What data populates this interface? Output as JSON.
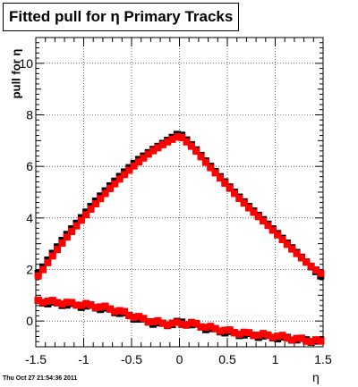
{
  "title": "Fitted pull for η  Primary Tracks",
  "timestamp": "Thu Oct 27 21:54:36 2011",
  "chart_data": {
    "type": "scatter",
    "title": "Fitted pull for η  Primary Tracks",
    "xlabel": "η",
    "ylabel": "pull for η",
    "xlim": [
      -1.5,
      1.5
    ],
    "ylim": [
      -1,
      11
    ],
    "xticks": [
      -1.5,
      -1,
      -0.5,
      0,
      0.5,
      1,
      1.5
    ],
    "yticks": [
      0,
      2,
      4,
      6,
      8,
      10
    ],
    "grid": true,
    "series": [
      {
        "color": "#000000",
        "marker": "square",
        "role": "width-black",
        "shape": "tent",
        "x": [
          -1.47,
          -1.35,
          -1.2,
          -1.05,
          -0.9,
          -0.75,
          -0.6,
          -0.45,
          -0.3,
          -0.15,
          0.0,
          0.15,
          0.3,
          0.45,
          0.6,
          0.75,
          0.9,
          1.05,
          1.2,
          1.35,
          1.47
        ],
        "y": [
          1.85,
          2.5,
          3.25,
          3.9,
          4.55,
          5.15,
          5.7,
          6.2,
          6.6,
          6.95,
          7.3,
          6.75,
          6.1,
          5.5,
          4.9,
          4.35,
          3.85,
          3.3,
          2.75,
          2.2,
          1.75
        ]
      },
      {
        "color": "#ff0000",
        "marker": "square",
        "role": "width-red",
        "shape": "tent",
        "x": [
          -1.47,
          -1.35,
          -1.2,
          -1.05,
          -0.9,
          -0.75,
          -0.6,
          -0.45,
          -0.3,
          -0.15,
          0.0,
          0.15,
          0.3,
          0.45,
          0.6,
          0.75,
          0.9,
          1.05,
          1.2,
          1.35,
          1.47
        ],
        "y": [
          1.75,
          2.4,
          3.15,
          3.8,
          4.45,
          5.05,
          5.6,
          6.1,
          6.55,
          6.9,
          7.2,
          6.7,
          6.05,
          5.45,
          4.85,
          4.3,
          3.8,
          3.25,
          2.7,
          2.2,
          1.85
        ]
      },
      {
        "color": "#000000",
        "marker": "square",
        "role": "mean-black",
        "shape": "low",
        "x": [
          -1.47,
          -1.35,
          -1.2,
          -1.05,
          -0.9,
          -0.75,
          -0.6,
          -0.45,
          -0.3,
          -0.15,
          0.0,
          0.15,
          0.3,
          0.45,
          0.6,
          0.75,
          0.9,
          1.05,
          1.2,
          1.35,
          1.47
        ],
        "y": [
          0.75,
          0.7,
          0.65,
          0.6,
          0.55,
          0.45,
          0.3,
          0.1,
          -0.05,
          -0.15,
          -0.05,
          -0.15,
          -0.3,
          -0.4,
          -0.5,
          -0.55,
          -0.6,
          -0.65,
          -0.7,
          -0.75,
          -0.8
        ]
      },
      {
        "color": "#ff0000",
        "marker": "square",
        "role": "mean-red",
        "shape": "low",
        "x": [
          -1.47,
          -1.35,
          -1.2,
          -1.05,
          -0.9,
          -0.75,
          -0.6,
          -0.45,
          -0.3,
          -0.15,
          0.0,
          0.15,
          0.3,
          0.45,
          0.6,
          0.75,
          0.9,
          1.05,
          1.2,
          1.35,
          1.47
        ],
        "y": [
          0.8,
          0.75,
          0.7,
          0.65,
          0.6,
          0.5,
          0.35,
          0.15,
          0.0,
          -0.1,
          -0.1,
          -0.1,
          -0.25,
          -0.35,
          -0.45,
          -0.5,
          -0.55,
          -0.6,
          -0.7,
          -0.75,
          -0.8
        ]
      }
    ]
  }
}
